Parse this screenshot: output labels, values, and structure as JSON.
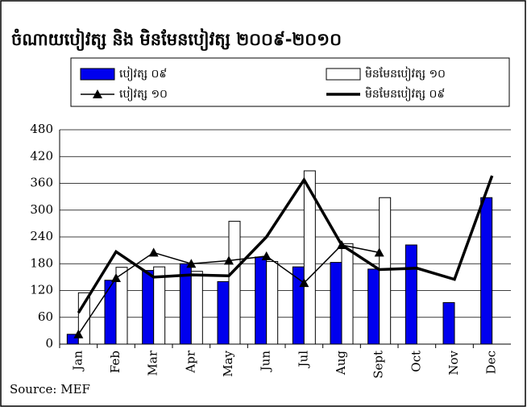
{
  "chart_data": {
    "type": "bar",
    "title": "ចំណាយបៀវត្ស និង មិនមែនបៀវត្ស ២០០៩-២០១០",
    "source": "Source: MEF",
    "categories": [
      "Jan",
      "Feb",
      "Mar",
      "Apr",
      "May",
      "Jun",
      "Jul",
      "Aug",
      "Sept",
      "Oct",
      "Nov",
      "Dec"
    ],
    "series": [
      {
        "name": "បៀវត្ស ០៩",
        "type": "bar",
        "color": "#0000ee",
        "values": [
          22,
          143,
          165,
          180,
          140,
          195,
          173,
          183,
          168,
          222,
          93,
          328
        ]
      },
      {
        "name": "មិនមែនបៀវត្ស ១០",
        "type": "bar",
        "color": "#ffffff",
        "values": [
          115,
          172,
          173,
          163,
          275,
          185,
          388,
          225,
          328,
          null,
          null,
          null
        ]
      },
      {
        "name": "បៀវត្ស ១០",
        "type": "line",
        "marker": "triangle",
        "color": "#000000",
        "values": [
          22,
          148,
          205,
          180,
          187,
          197,
          137,
          222,
          205,
          null,
          null,
          null
        ]
      },
      {
        "name": "មិនមែនបៀវត្ស ០៩",
        "type": "line",
        "color": "#000000",
        "values": [
          70,
          207,
          150,
          155,
          153,
          240,
          368,
          222,
          167,
          170,
          145,
          377
        ]
      }
    ],
    "ylim": [
      0,
      480
    ],
    "yticks": [
      0,
      60,
      120,
      180,
      240,
      300,
      360,
      420,
      480
    ],
    "grid": true
  }
}
